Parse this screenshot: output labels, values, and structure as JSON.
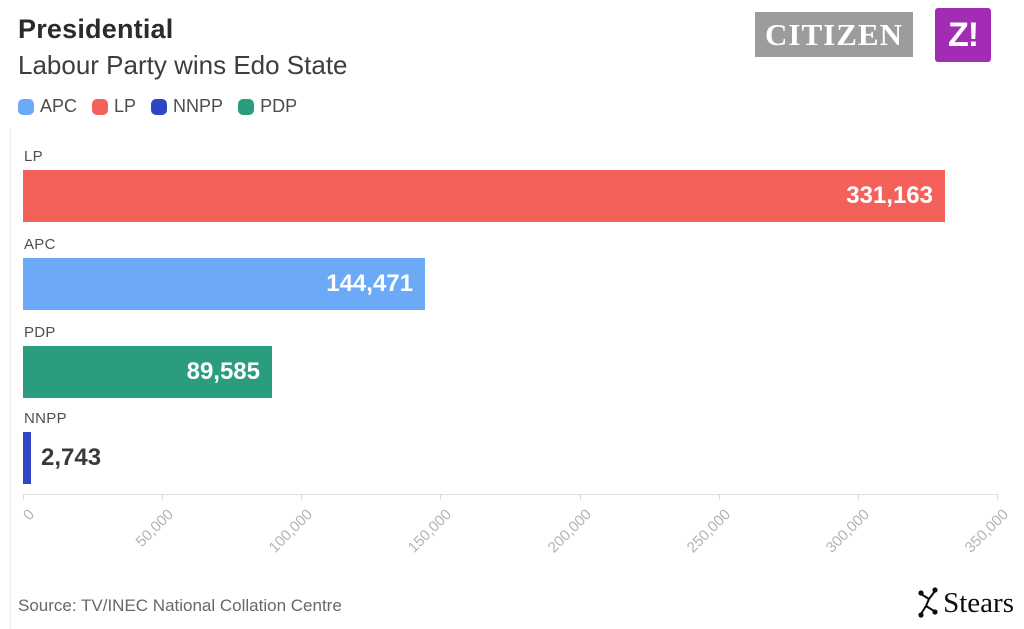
{
  "header": {
    "title": "Presidential",
    "subtitle": "Labour Party wins Edo State"
  },
  "logos": {
    "citizen_text": "CITIZEN",
    "citizen_bg": "#9c9c9c",
    "zikoko_text": "Z!",
    "zikoko_bg": "#a32cb5",
    "stears_text": "Stears"
  },
  "legend": [
    {
      "label": "APC",
      "color": "#6ca9f6"
    },
    {
      "label": "LP",
      "color": "#f4605a"
    },
    {
      "label": "NNPP",
      "color": "#2e46c4"
    },
    {
      "label": "PDP",
      "color": "#2a9d7f"
    }
  ],
  "chart_data": {
    "type": "bar",
    "orientation": "horizontal",
    "title": "Presidential",
    "subtitle": "Labour Party wins Edo State",
    "categories": [
      "LP",
      "APC",
      "PDP",
      "NNPP"
    ],
    "values": [
      331163,
      144471,
      89585,
      2743
    ],
    "value_labels": [
      "331,163",
      "144,471",
      "89,585",
      "2,743"
    ],
    "colors": [
      "#f4605a",
      "#6ca9f6",
      "#2a9d7f",
      "#2e46c4"
    ],
    "value_label_inside": [
      true,
      true,
      true,
      false
    ],
    "xlim": [
      0,
      350000
    ],
    "x_ticks": [
      0,
      50000,
      100000,
      150000,
      200000,
      250000,
      300000,
      350000
    ],
    "x_tick_labels": [
      "0",
      "50,000",
      "100,000",
      "150,000",
      "200,000",
      "250,000",
      "300,000",
      "350,000"
    ],
    "grid": false,
    "legend_position": "top"
  },
  "footer": {
    "source": "Source: TV/INEC National Collation Centre"
  }
}
